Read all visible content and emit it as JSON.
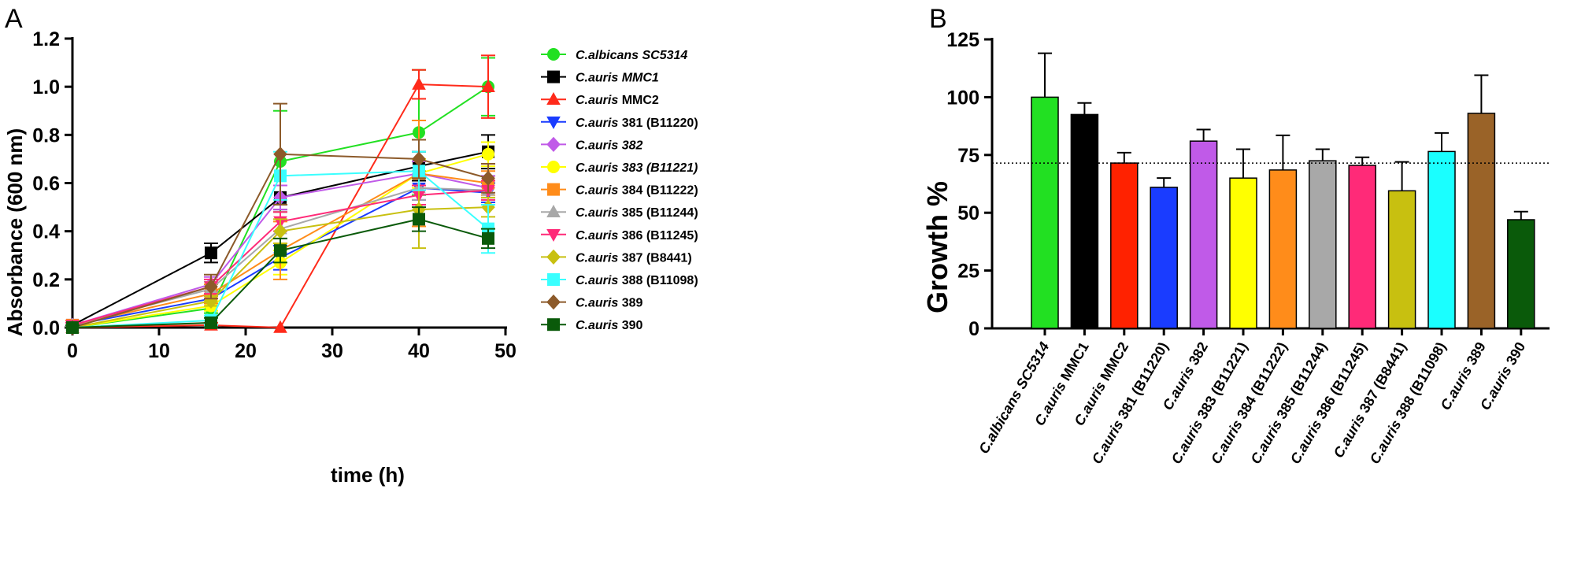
{
  "chart_data": [
    {
      "type": "line",
      "panel_label": "A",
      "xlabel": "time (h)",
      "ylabel": "Absorbance (600 nm)",
      "xlim": [
        0,
        50
      ],
      "ylim": [
        0,
        1.2
      ],
      "x_ticks": [
        "0",
        "10",
        "20",
        "30",
        "40",
        "50"
      ],
      "y_ticks": [
        "0.0",
        "0.2",
        "0.4",
        "0.6",
        "0.8",
        "1.0",
        "1.2"
      ],
      "x": [
        0,
        16,
        24,
        40,
        48
      ],
      "series": [
        {
          "name": "C.albicans SC5314",
          "name_italic": "C.albicans SC5314",
          "name_rest": "",
          "color": "#22e022",
          "marker": "circle",
          "values": [
            0.0,
            0.08,
            0.69,
            0.81,
            1.0
          ],
          "err": [
            0.01,
            0.02,
            0.21,
            0.26,
            0.12
          ]
        },
        {
          "name": "C.auris MMC1",
          "name_italic": "C.auris MMC1",
          "name_rest": "",
          "color": "#000000",
          "marker": "square",
          "values": [
            0.01,
            0.31,
            0.54,
            0.67,
            0.73
          ],
          "err": [
            0.01,
            0.04,
            0.05,
            0.06,
            0.07
          ]
        },
        {
          "name": "C.auris MMC2",
          "name_italic": "C.auris",
          "name_rest": " MMC2",
          "color": "#ff2a1a",
          "marker": "triangle-up",
          "values": [
            0.0,
            0.01,
            0.0,
            1.01,
            1.0
          ],
          "err": [
            0.0,
            0.01,
            0.0,
            0.06,
            0.13
          ]
        },
        {
          "name": "C.auris 381 (B11220)",
          "name_italic": "C.auris",
          "name_rest": " 381 (B11220)",
          "color": "#1a3cff",
          "marker": "triangle-down",
          "values": [
            0.01,
            0.12,
            0.29,
            0.58,
            0.56
          ],
          "err": [
            0.01,
            0.03,
            0.05,
            0.05,
            0.04
          ]
        },
        {
          "name": "C.auris 382",
          "name_italic": "C.auris 382",
          "name_rest": "",
          "color": "#c05ae8",
          "marker": "diamond",
          "values": [
            0.01,
            0.18,
            0.54,
            0.64,
            0.58
          ],
          "err": [
            0.01,
            0.03,
            0.05,
            0.05,
            0.05
          ]
        },
        {
          "name": "C.auris 383 (B11221)",
          "name_italic": "C.auris 383 (B11221)",
          "name_rest": "",
          "color": "#ffff00",
          "marker": "circle",
          "values": [
            0.0,
            0.09,
            0.27,
            0.64,
            0.72
          ],
          "err": [
            0.01,
            0.02,
            0.05,
            0.06,
            0.05
          ]
        },
        {
          "name": "C.auris 384 (B11222)",
          "name_italic": "C.auris",
          "name_rest": " 384 (B11222)",
          "color": "#ff8c1a",
          "marker": "square",
          "values": [
            0.01,
            0.14,
            0.32,
            0.64,
            0.6
          ],
          "err": [
            0.02,
            0.04,
            0.12,
            0.22,
            0.05
          ]
        },
        {
          "name": "C.auris 385 (B11244)",
          "name_italic": "C.auris",
          "name_rest": " 385 (B11244)",
          "color": "#a8a8a8",
          "marker": "triangle-up",
          "values": [
            0.01,
            0.16,
            0.41,
            0.58,
            0.57
          ],
          "err": [
            0.01,
            0.03,
            0.04,
            0.05,
            0.04
          ]
        },
        {
          "name": "C.auris 386 (B11245)",
          "name_italic": "C.auris",
          "name_rest": " 386 (B11245)",
          "color": "#ff2a78",
          "marker": "triangle-down",
          "values": [
            0.01,
            0.17,
            0.44,
            0.55,
            0.57
          ],
          "err": [
            0.01,
            0.03,
            0.04,
            0.04,
            0.04
          ]
        },
        {
          "name": "C.auris 387 (B8441)",
          "name_italic": "C.auris",
          "name_rest": " 387 (B8441)",
          "color": "#c8c010",
          "marker": "diamond",
          "values": [
            0.0,
            0.11,
            0.4,
            0.49,
            0.5
          ],
          "err": [
            0.01,
            0.02,
            0.05,
            0.16,
            0.04
          ]
        },
        {
          "name": "C.auris 388 (B11098)",
          "name_italic": "C.auris",
          "name_rest": " 388 (B11098)",
          "color": "#3affff",
          "marker": "square",
          "values": [
            0.0,
            0.03,
            0.63,
            0.65,
            0.41
          ],
          "err": [
            0.01,
            0.02,
            0.1,
            0.08,
            0.1
          ]
        },
        {
          "name": "C.auris 389",
          "name_italic": "C.auris",
          "name_rest": " 389",
          "color": "#8c5a2a",
          "marker": "diamond",
          "values": [
            0.0,
            0.17,
            0.72,
            0.7,
            0.62
          ],
          "err": [
            0.01,
            0.05,
            0.21,
            0.08,
            0.06
          ]
        },
        {
          "name": "C.auris 390",
          "name_italic": "C.auris",
          "name_rest": " 390",
          "color": "#0a5a0a",
          "marker": "square",
          "values": [
            0.0,
            0.02,
            0.32,
            0.45,
            0.37
          ],
          "err": [
            0.01,
            0.02,
            0.05,
            0.05,
            0.04
          ]
        }
      ]
    },
    {
      "type": "bar",
      "panel_label": "B",
      "ylabel": "Growth %",
      "ylim": [
        0,
        125
      ],
      "y_ticks": [
        "0",
        "25",
        "50",
        "75",
        "100",
        "125"
      ],
      "reference_line": 71.5,
      "categories": [
        {
          "label": "C.albicans SC5314",
          "italic": "C.albicans SC5314",
          "rest": ""
        },
        {
          "label": "C.auris MMC1",
          "italic": "C.auris",
          "rest": " MMC1"
        },
        {
          "label": "C.auris MMC2",
          "italic": "C.auris",
          "rest": " MMC2"
        },
        {
          "label": "C.auris 381 (B11220)",
          "italic": "C.auris",
          "rest": " 381 (B11220)"
        },
        {
          "label": "C.auris 382",
          "italic": "C.auris",
          "rest": " 382"
        },
        {
          "label": "C.auris 383 (B11221)",
          "italic": "C.auris",
          "rest": " 383 (B11221)"
        },
        {
          "label": "C.auris 384 (B11222)",
          "italic": "C.auris",
          "rest": " 384 (B11222)"
        },
        {
          "label": "C.auris 385 (B11244)",
          "italic": "C.auris",
          "rest": " 385 (B11244)"
        },
        {
          "label": "C.auris 386 (B11245)",
          "italic": "C.auris",
          "rest": " 386 (B11245)"
        },
        {
          "label": "C.auris 387 (B8441)",
          "italic": "C.auris",
          "rest": " 387 (B8441)"
        },
        {
          "label": "C.auris 388 (B11098)",
          "italic": "C.auris",
          "rest": " 388 (B11098)"
        },
        {
          "label": "C.auris 389",
          "italic": "C.auris",
          "rest": " 389"
        },
        {
          "label": "C.auris 390",
          "italic": "C.auris",
          "rest": " 390"
        }
      ],
      "values": [
        100,
        92.5,
        71.5,
        61,
        81,
        65,
        68.5,
        72.5,
        70.5,
        59.5,
        76.5,
        93,
        47
      ],
      "err": [
        19,
        5,
        4.5,
        4,
        5,
        12.5,
        15,
        5,
        3.5,
        12.5,
        8,
        16.5,
        3.5
      ],
      "colors": [
        "#22e022",
        "#000000",
        "#ff2200",
        "#1a3cff",
        "#c05ae8",
        "#ffff00",
        "#ff8c1a",
        "#a8a8a8",
        "#ff2a78",
        "#c8c010",
        "#1affff",
        "#9a6328",
        "#0a5a0a"
      ]
    }
  ]
}
